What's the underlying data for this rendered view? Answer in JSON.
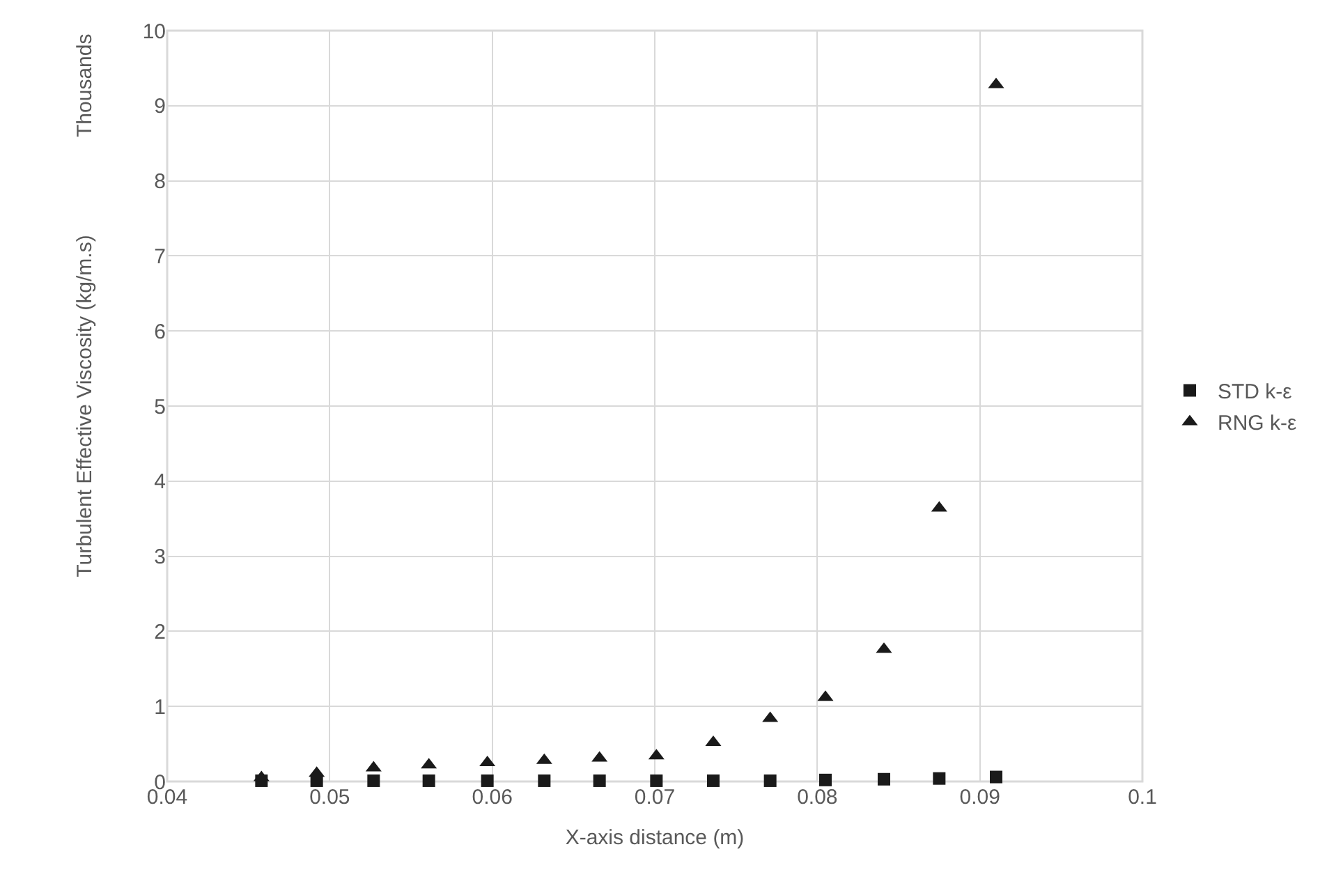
{
  "chart_data": {
    "type": "scatter",
    "xlabel": "X-axis distance (m)",
    "ylabel": "Turbulent Effective Viscosity (kg/m.s)",
    "annotations": [
      "Thousands"
    ],
    "x": [
      0.0458,
      0.0492,
      0.0527,
      0.0561,
      0.0597,
      0.0632,
      0.0666,
      0.0701,
      0.0736,
      0.0771,
      0.0805,
      0.0841,
      0.0875,
      0.091
    ],
    "series": [
      {
        "name": "STD k-ε",
        "color": "#1a1a1a",
        "marker": "square",
        "values": [
          0.01,
          0.01,
          0.01,
          0.01,
          0.01,
          0.01,
          0.01,
          0.01,
          0.01,
          0.01,
          0.02,
          0.03,
          0.04,
          0.06
        ]
      },
      {
        "name": "RNG k-ε",
        "color": "#1a1a1a",
        "marker": "triangle",
        "values": [
          0.05,
          0.11,
          0.18,
          0.22,
          0.25,
          0.28,
          0.31,
          0.34,
          0.52,
          0.84,
          1.12,
          1.76,
          3.64,
          9.28
        ]
      }
    ],
    "xlim": [
      0.04,
      0.1
    ],
    "xticks": [
      0.04,
      0.05,
      0.06,
      0.07,
      0.08,
      0.09,
      0.1
    ],
    "ylim": [
      0,
      10
    ],
    "yticks": [
      0,
      1,
      2,
      3,
      4,
      5,
      6,
      7,
      8,
      9,
      10
    ],
    "grid": true,
    "legend": "right"
  }
}
